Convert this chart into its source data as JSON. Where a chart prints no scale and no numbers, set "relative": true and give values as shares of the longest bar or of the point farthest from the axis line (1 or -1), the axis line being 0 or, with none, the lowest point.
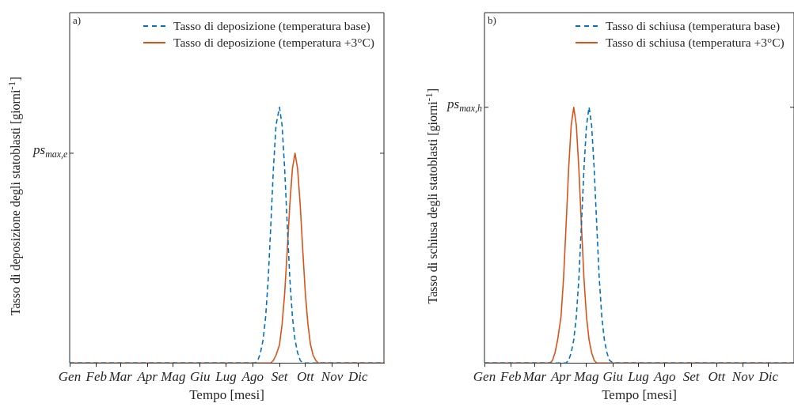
{
  "chart_data": [
    {
      "type": "line",
      "relative": true,
      "xlabel": "Tempo [mesi]",
      "ylabel": "Tasso di deposizione degli statoblasti [giorni$^{-1}$]",
      "xlim": [
        "--01-01",
        "--12-31"
      ],
      "xticks": [
        {
          "value": "--01-01",
          "label": "Gen"
        },
        {
          "value": "--02-01",
          "label": "Feb"
        },
        {
          "value": "--03-01",
          "label": "Mar"
        },
        {
          "value": "--04-01",
          "label": "Apr"
        },
        {
          "value": "--05-01",
          "label": "Mag"
        },
        {
          "value": "--06-01",
          "label": "Giu"
        },
        {
          "value": "--07-01",
          "label": "Lug"
        },
        {
          "value": "--08-01",
          "label": "Ago"
        },
        {
          "value": "--09-01",
          "label": "Set"
        },
        {
          "value": "--10-01",
          "label": "Ott"
        },
        {
          "value": "--11-01",
          "label": "Nov"
        },
        {
          "value": "--12-01",
          "label": "Dic"
        }
      ],
      "legend": "top right",
      "marker": "none",
      "annotations": [
        "a)",
        "ps$_{max,e}$"
      ],
      "series": [
        {
          "name": "Tasso di deposizione (temperatura base)",
          "color": "#0072bd",
          "line_style": "dashed",
          "x": [
            "--01-01",
            "--08-04",
            "--08-07",
            "--08-10",
            "--08-13",
            "--08-16",
            "--08-19",
            "--08-22",
            "--08-25",
            "--08-28",
            "--09-01",
            "--09-04",
            "--09-07",
            "--09-10",
            "--09-13",
            "--09-16",
            "--09-19",
            "--09-22",
            "--09-25",
            "--09-28",
            "--12-31"
          ],
          "values": [
            0,
            0,
            0.01,
            0.04,
            0.09,
            0.18,
            0.33,
            0.54,
            0.76,
            0.93,
            1,
            0.93,
            0.76,
            0.54,
            0.33,
            0.18,
            0.09,
            0.04,
            0.01,
            0,
            0
          ]
        },
        {
          "name": "Tasso di deposizione (temperatura +3°C)",
          "color": "#d95319",
          "line_style": "solid",
          "x": [
            "--01-01",
            "--08-22",
            "--08-25",
            "--08-28",
            "--09-01",
            "--09-04",
            "--09-07",
            "--09-10",
            "--09-13",
            "--09-16",
            "--09-19",
            "--09-22",
            "--09-25",
            "--09-28",
            "--10-01",
            "--10-04",
            "--10-07",
            "--10-10",
            "--10-13",
            "--10-16",
            "--12-31"
          ],
          "values": [
            0,
            0,
            0.01,
            0.03,
            0.07,
            0.15,
            0.27,
            0.44,
            0.62,
            0.76,
            0.82,
            0.76,
            0.62,
            0.44,
            0.27,
            0.15,
            0.07,
            0.03,
            0.01,
            0,
            0
          ]
        }
      ]
    },
    {
      "type": "line",
      "relative": true,
      "xlabel": "Tempo [mesi]",
      "ylabel": "Tasso di schiusa degli statoblasti [giorni$^{-1}$]",
      "xlim": [
        "--01-01",
        "--12-31"
      ],
      "xticks": [
        {
          "value": "--01-01",
          "label": "Gen"
        },
        {
          "value": "--02-01",
          "label": "Feb"
        },
        {
          "value": "--03-01",
          "label": "Mar"
        },
        {
          "value": "--04-01",
          "label": "Apr"
        },
        {
          "value": "--05-01",
          "label": "Mag"
        },
        {
          "value": "--06-01",
          "label": "Giu"
        },
        {
          "value": "--07-01",
          "label": "Lug"
        },
        {
          "value": "--08-01",
          "label": "Ago"
        },
        {
          "value": "--09-01",
          "label": "Set"
        },
        {
          "value": "--10-01",
          "label": "Ott"
        },
        {
          "value": "--11-01",
          "label": "Nov"
        },
        {
          "value": "--12-01",
          "label": "Dic"
        }
      ],
      "legend": "top right",
      "marker": "none",
      "annotations": [
        "b)",
        "ps$_{max,h}$"
      ],
      "series": [
        {
          "name": "Tasso di schiusa (temperatura base)",
          "color": "#0072bd",
          "line_style": "dashed",
          "x": [
            "--01-01",
            "--04-07",
            "--04-10",
            "--04-13",
            "--04-16",
            "--04-19",
            "--04-22",
            "--04-25",
            "--04-28",
            "--05-01",
            "--05-04",
            "--05-07",
            "--05-10",
            "--05-13",
            "--05-16",
            "--05-19",
            "--05-22",
            "--05-25",
            "--05-28",
            "--06-01",
            "--12-31"
          ],
          "values": [
            0,
            0,
            0.01,
            0.04,
            0.09,
            0.18,
            0.33,
            0.54,
            0.76,
            0.93,
            1,
            0.93,
            0.76,
            0.54,
            0.33,
            0.18,
            0.09,
            0.04,
            0.01,
            0,
            0
          ]
        },
        {
          "name": "Tasso di schiusa (temperatura +3°C)",
          "color": "#d95319",
          "line_style": "solid",
          "x": [
            "--01-01",
            "--03-19",
            "--03-22",
            "--03-25",
            "--03-28",
            "--04-01",
            "--04-04",
            "--04-07",
            "--04-10",
            "--04-13",
            "--04-16",
            "--04-19",
            "--04-22",
            "--04-25",
            "--04-28",
            "--05-01",
            "--05-04",
            "--05-07",
            "--05-10",
            "--05-13",
            "--12-31"
          ],
          "values": [
            0,
            0,
            0.01,
            0.04,
            0.09,
            0.18,
            0.33,
            0.54,
            0.76,
            0.93,
            1,
            0.93,
            0.76,
            0.54,
            0.33,
            0.18,
            0.09,
            0.04,
            0.01,
            0,
            0
          ]
        }
      ]
    }
  ]
}
